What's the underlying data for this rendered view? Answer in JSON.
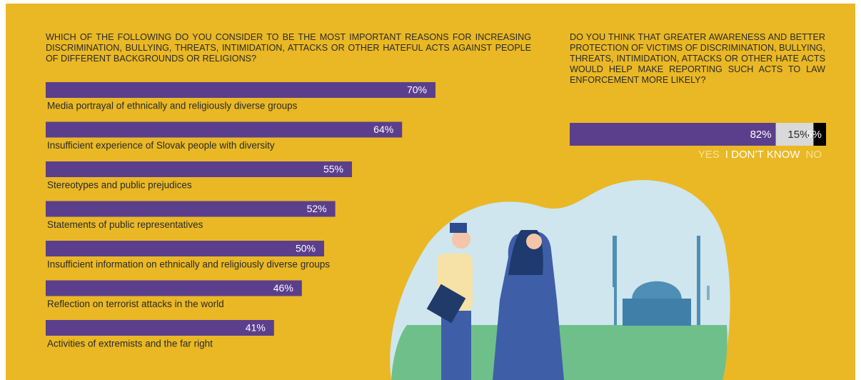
{
  "chart_data": [
    {
      "type": "bar",
      "orientation": "horizontal",
      "title": "Which of the following do you consider to be the most important reasons for increasing discrimination, bullying, threats, intimidation, attacks or other hateful acts against people of different backgrounds or religions?",
      "categories": [
        "Media portrayal of ethnically and religiously diverse groups",
        "Insufficient experience of Slovak people with diversity",
        "Stereotypes and public prejudices",
        "Statements of public representatives",
        "Insufficient information on ethnically and religiously diverse groups",
        "Reflection on terrorist attacks in the world",
        "Activities of extremists and the far right"
      ],
      "values": [
        70,
        64,
        55,
        52,
        50,
        46,
        41
      ],
      "value_labels": [
        "70%",
        "64%",
        "55%",
        "52%",
        "50%",
        "46%",
        "41%"
      ],
      "color": "#5b3f8c"
    },
    {
      "type": "bar",
      "orientation": "horizontal",
      "stacked": true,
      "title": "Do you think that greater awareness and better protection of victims of discrimination, bullying, threats, intimidation, attacks or other hate acts would help make reporting such acts to law enforcement more likely?",
      "series": [
        {
          "name": "YES",
          "color": "#5b3f8c",
          "label_color": "#ffffff",
          "legend_color": "#f6e39a",
          "values": [
            82
          ],
          "value_labels": [
            "82%"
          ]
        },
        {
          "name": "I DON’T KNOW",
          "color": "#d9d9d9",
          "label_color": "#2b2b2b",
          "legend_color": "#ffffff",
          "values": [
            15
          ],
          "value_labels": [
            "15%"
          ]
        },
        {
          "name": "NO",
          "color": "#000000",
          "label_color": "#ffffff",
          "legend_color": "#f6e39a",
          "values": [
            5
          ],
          "value_labels": [
            "5%"
          ]
        }
      ]
    }
  ]
}
